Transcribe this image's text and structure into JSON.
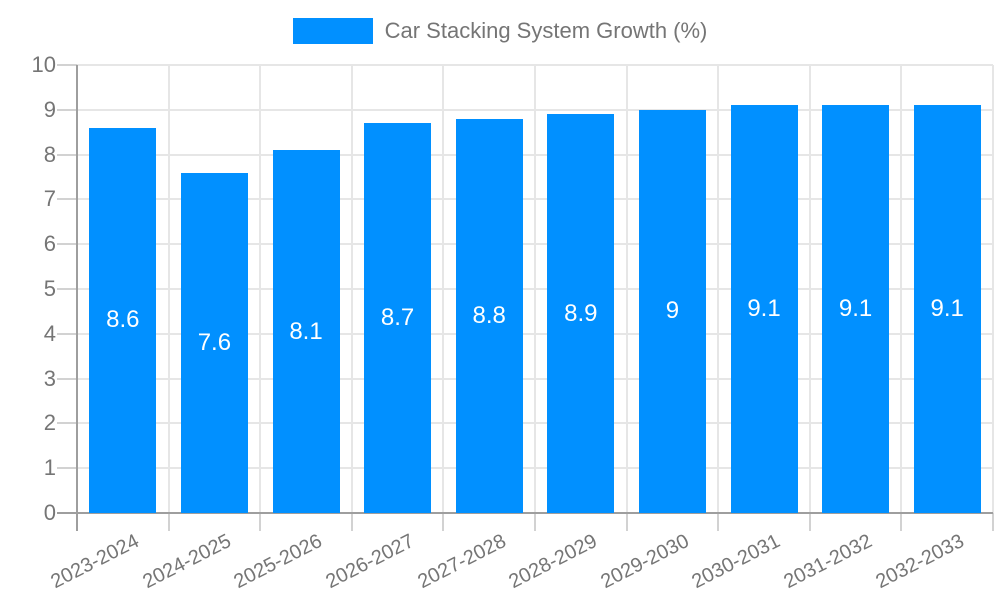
{
  "chart_data": {
    "type": "bar",
    "title": "Car Stacking System Growth (%)",
    "categories": [
      "2023-2024",
      "2024-2025",
      "2025-2026",
      "2026-2027",
      "2027-2028",
      "2028-2029",
      "2029-2030",
      "2030-2031",
      "2031-2032",
      "2032-2033"
    ],
    "values": [
      8.6,
      7.6,
      8.1,
      8.7,
      8.8,
      8.9,
      9,
      9.1,
      9.1,
      9.1
    ],
    "value_labels": [
      "8.6",
      "7.6",
      "8.1",
      "8.7",
      "8.8",
      "8.9",
      "9",
      "9.1",
      "9.1",
      "9.1"
    ],
    "xlabel": "",
    "ylabel": "",
    "ylim": [
      0,
      10
    ],
    "ytick_step": 1,
    "ytick_labels": [
      "0",
      "1",
      "2",
      "3",
      "4",
      "5",
      "6",
      "7",
      "8",
      "9",
      "10"
    ],
    "grid": true,
    "legend_position": "top",
    "x_label_rotation_deg": -27,
    "colors": {
      "bar": "#0190FF",
      "bar_label": "#FFFFFF",
      "axis_line": "#9E9E9E",
      "grid_line": "#E6E6E6",
      "tick_line": "#D2D2D2",
      "axis_text": "#757575",
      "legend_text": "#757575",
      "background": "#FFFFFF"
    }
  },
  "legend": {
    "label": "Car Stacking System Growth (%)"
  }
}
